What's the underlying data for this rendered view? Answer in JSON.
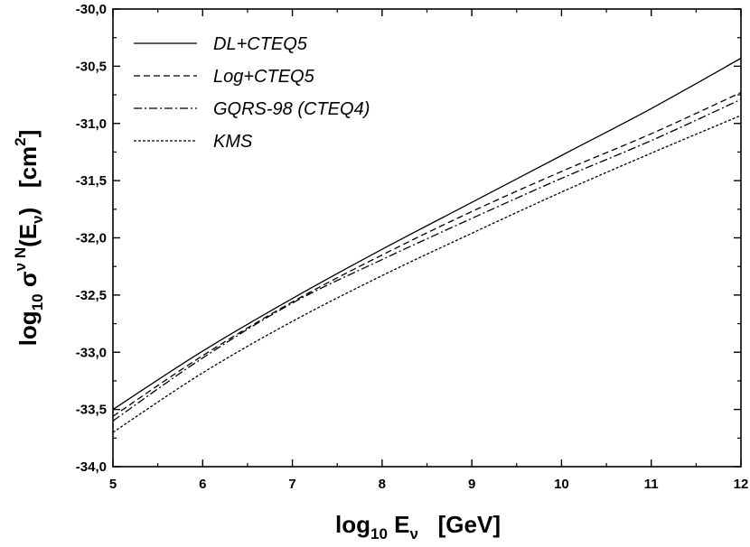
{
  "chart_data": {
    "type": "line",
    "title": "",
    "xlabel": {
      "pre": "log",
      "sub": "10",
      "mid": " E",
      "sub2": "ν",
      "post": "   [GeV]"
    },
    "ylabel": {
      "pre": "log",
      "sub": "10",
      "mid": " σ",
      "sup": "ν N",
      "post2": "(E",
      "sub2": "ν",
      "post3": ")   [cm",
      "sup2": "2",
      "post4": "]"
    },
    "xlim": [
      5,
      12
    ],
    "ylim": [
      -34.0,
      -30.0
    ],
    "x_ticks": [
      5,
      6,
      7,
      8,
      9,
      10,
      11,
      12
    ],
    "x_tick_labels": [
      "5",
      "6",
      "7",
      "8",
      "9",
      "10",
      "11",
      "12"
    ],
    "y_ticks": [
      -34.0,
      -33.5,
      -33.0,
      -32.5,
      -32.0,
      -31.5,
      -31.0,
      -30.5,
      -30.0
    ],
    "y_tick_labels": [
      "-34,0",
      "-33,5",
      "-33,0",
      "-32,5",
      "-32,0",
      "-31,5",
      "-31,0",
      "-30,5",
      "-30,0"
    ],
    "grid": false,
    "legend_position": "top-left",
    "x": [
      5,
      6,
      7,
      8,
      9,
      10,
      11,
      12
    ],
    "series": [
      {
        "name": "DL+CTEQ5",
        "dash": "solid",
        "values": [
          -33.5,
          -32.99,
          -32.53,
          -32.1,
          -31.69,
          -31.28,
          -30.87,
          -30.43
        ]
      },
      {
        "name": "Log+CTEQ5",
        "dash": "dashed",
        "values": [
          -33.56,
          -33.03,
          -32.56,
          -32.15,
          -31.77,
          -31.42,
          -31.09,
          -30.73
        ]
      },
      {
        "name": "GQRS-98 (CTEQ4)",
        "dash": "dashdot",
        "values": [
          -33.6,
          -33.05,
          -32.57,
          -32.19,
          -31.83,
          -31.48,
          -31.15,
          -30.79
        ]
      },
      {
        "name": "KMS",
        "dash": "dotted",
        "values": [
          -33.7,
          -33.18,
          -32.73,
          -32.33,
          -31.96,
          -31.6,
          -31.26,
          -30.93
        ]
      }
    ],
    "colors": {
      "line": "#000000",
      "axis": "#000000",
      "background": "#ffffff"
    }
  }
}
